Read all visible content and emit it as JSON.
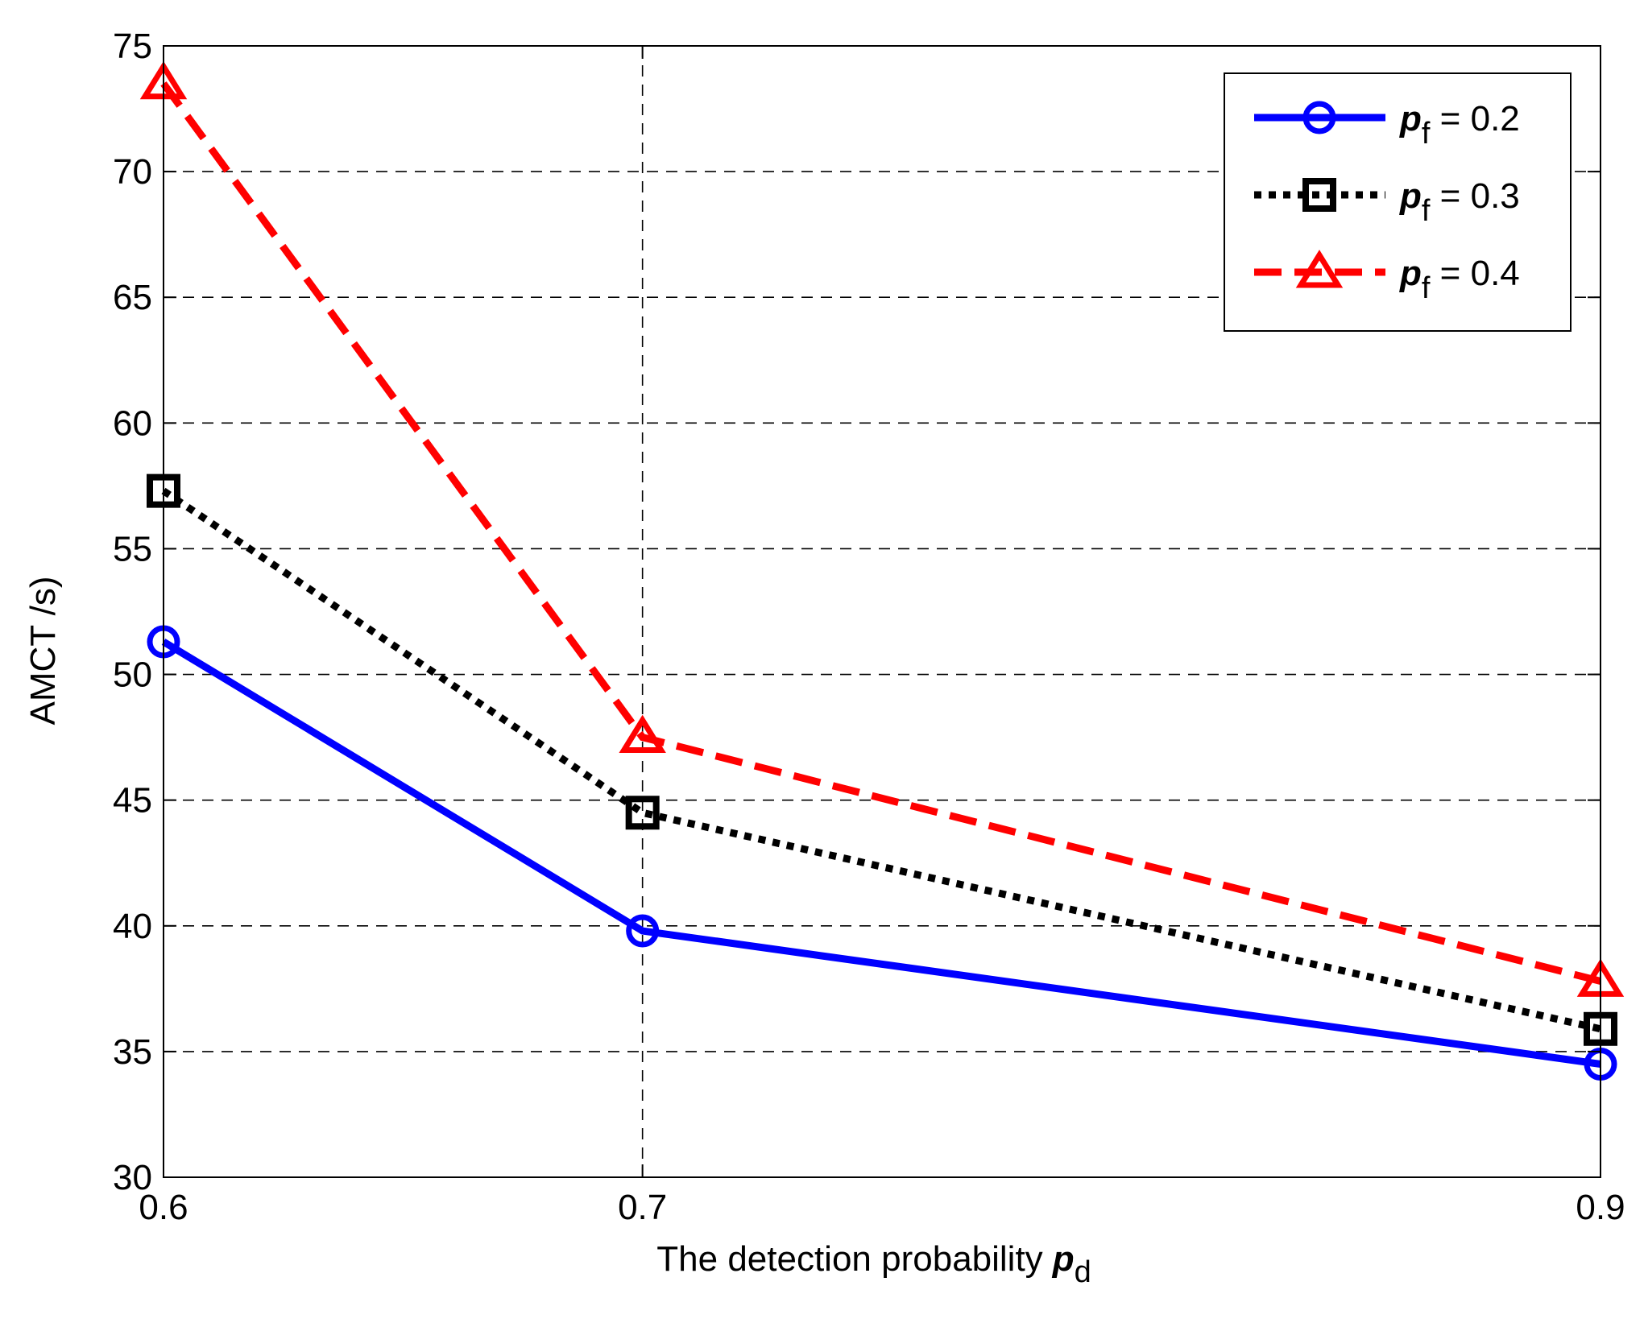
{
  "chart_data": {
    "type": "line",
    "title": "",
    "xlabel": "The detection probability",
    "xlabel_symbol": "p",
    "xlabel_subscript": "d",
    "ylabel": "AMCT /s)",
    "x": [
      0.6,
      0.7,
      0.9
    ],
    "xticks": [
      "0.6",
      "0.7",
      "0.9"
    ],
    "xlim": [
      0.6,
      0.9
    ],
    "yticks": [
      "30",
      "35",
      "40",
      "45",
      "50",
      "55",
      "60",
      "65",
      "70",
      "75"
    ],
    "ylim": [
      30,
      75
    ],
    "grid": "dashed",
    "legend_position": "top-right",
    "series": [
      {
        "name": "pf = 0.2",
        "symbol": "p",
        "subscript": "f",
        "suffix": " = 0.2",
        "values": [
          51.3,
          39.8,
          34.5
        ],
        "color": "#0000ff",
        "line_style": "solid",
        "marker": "circle"
      },
      {
        "name": "pf = 0.3",
        "symbol": "p",
        "subscript": "f",
        "suffix": " = 0.3",
        "values": [
          57.3,
          44.5,
          35.9
        ],
        "color": "#000000",
        "line_style": "dotted",
        "marker": "square"
      },
      {
        "name": "pf = 0.4",
        "symbol": "p",
        "subscript": "f",
        "suffix": " = 0.4",
        "values": [
          73.5,
          47.5,
          37.8
        ],
        "color": "#ff0000",
        "line_style": "dashed",
        "marker": "triangle"
      }
    ]
  }
}
